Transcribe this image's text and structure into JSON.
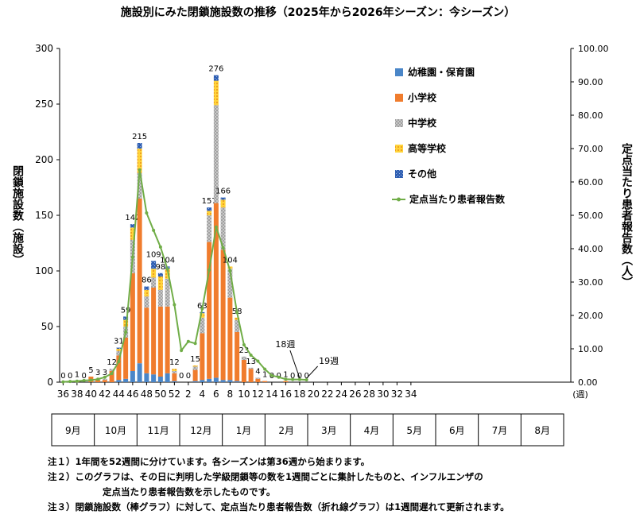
{
  "chart_data": {
    "type": "bar+line",
    "title": "施設別にみた閉鎖施設数の推移（2025年から2026年シーズン：今シーズン）",
    "ylabel_left": "閉鎖施設数（施設）",
    "ylabel_right": "定点当たり患者報告数（人）",
    "xlabel_unit": "(週)",
    "ylim_left": [
      0,
      300
    ],
    "ylim_right": [
      0,
      100
    ],
    "yticks_left": [
      "0",
      "50",
      "100",
      "150",
      "200",
      "250",
      "300"
    ],
    "yticks_right": [
      "0.00",
      "10.00",
      "20.00",
      "30.00",
      "40.00",
      "50.00",
      "60.00",
      "70.00",
      "80.00",
      "90.00",
      "100.00"
    ],
    "x_tick_labels": [
      "36",
      "38",
      "40",
      "42",
      "44",
      "46",
      "48",
      "50",
      "52",
      "2",
      "4",
      "6",
      "8",
      "10",
      "12",
      "14",
      "16",
      "18",
      "20",
      "22",
      "24",
      "26",
      "28",
      "30",
      "32",
      "34"
    ],
    "weeks": [
      36,
      37,
      38,
      39,
      40,
      41,
      42,
      43,
      44,
      45,
      46,
      47,
      48,
      49,
      50,
      51,
      52,
      1,
      2,
      3,
      4,
      5,
      6,
      7,
      8,
      9,
      10,
      11,
      12,
      13,
      14,
      15,
      16,
      17,
      18,
      19
    ],
    "totals": [
      0,
      0,
      1,
      0,
      5,
      3,
      3,
      12,
      31,
      59,
      142,
      215,
      86,
      109,
      98,
      104,
      12,
      0,
      0,
      15,
      63,
      157,
      276,
      166,
      104,
      58,
      23,
      13,
      4,
      1,
      0,
      0,
      1,
      0,
      0,
      0
    ],
    "series": [
      {
        "name": "幼稚園・保育園",
        "color": "#4a86c8",
        "values": [
          0,
          0,
          0,
          0,
          0,
          0,
          0,
          0,
          2,
          3,
          10,
          17,
          8,
          7,
          5,
          8,
          1,
          0,
          0,
          1,
          2,
          3,
          4,
          2,
          2,
          1,
          0,
          0,
          0,
          0,
          0,
          0,
          0,
          0,
          0,
          0
        ]
      },
      {
        "name": "小学校",
        "color": "#f07c2d",
        "values": [
          0,
          0,
          1,
          0,
          5,
          2,
          2,
          10,
          22,
          37,
          88,
          148,
          59,
          78,
          63,
          60,
          7,
          0,
          0,
          10,
          42,
          123,
          157,
          117,
          74,
          44,
          20,
          12,
          3,
          1,
          0,
          0,
          1,
          0,
          0,
          0
        ]
      },
      {
        "name": "中学校",
        "color": "#a8a8a8",
        "values": [
          0,
          0,
          0,
          0,
          0,
          1,
          1,
          2,
          4,
          10,
          30,
          23,
          10,
          9,
          15,
          25,
          2,
          0,
          0,
          3,
          14,
          24,
          88,
          38,
          26,
          11,
          3,
          1,
          1,
          0,
          0,
          0,
          0,
          0,
          0,
          0
        ]
      },
      {
        "name": "高等学校",
        "color": "#f5c518",
        "values": [
          0,
          0,
          0,
          0,
          0,
          0,
          0,
          0,
          2,
          6,
          11,
          22,
          6,
          8,
          12,
          9,
          2,
          0,
          0,
          1,
          4,
          4,
          22,
          7,
          2,
          2,
          0,
          0,
          0,
          0,
          0,
          0,
          0,
          0,
          0,
          0
        ]
      },
      {
        "name": "その他",
        "color": "#2f5fb3",
        "values": [
          0,
          0,
          0,
          0,
          0,
          0,
          0,
          0,
          1,
          3,
          3,
          5,
          3,
          7,
          3,
          2,
          0,
          0,
          0,
          0,
          1,
          3,
          5,
          2,
          0,
          0,
          0,
          0,
          0,
          0,
          0,
          0,
          0,
          0,
          0,
          0
        ]
      }
    ],
    "line": {
      "name": "定点当たり患者報告数",
      "color": "#70ad47",
      "values": [
        0.1,
        0.2,
        0.3,
        0.5,
        0.6,
        0.9,
        1.5,
        2.6,
        6.2,
        15.0,
        37.4,
        63.6,
        50.7,
        45.5,
        40.5,
        33.9,
        23.2,
        9.5,
        12.2,
        11.6,
        22.0,
        33.6,
        46.5,
        40.3,
        33.4,
        20.9,
        11.2,
        8.1,
        6.3,
        3.9,
        2.0,
        1.5,
        0.9,
        0.8,
        0.8,
        0.7
      ]
    },
    "annotations": [
      {
        "text": "18週",
        "week": 18
      },
      {
        "text": "19週",
        "week": 19
      }
    ],
    "months": [
      "9月",
      "10月",
      "11月",
      "12月",
      "1月",
      "2月",
      "3月",
      "4月",
      "5月",
      "6月",
      "7月",
      "8月"
    ]
  },
  "notes": [
    {
      "label": "注１）",
      "lines": [
        "1年間を52週間に分けています。各シーズンは第36週から始まります。"
      ]
    },
    {
      "label": "注２）",
      "lines": [
        "このグラフは、その日に判明した学級閉鎖等の数を1週間ごとに集計したものと、インフルエンザの",
        "定点当たり患者報告数を示したものです。"
      ]
    },
    {
      "label": "注３）",
      "lines": [
        "閉鎖施設数（棒グラフ）に対して、定点当たり患者報告数（折れ線グラフ）は1週間遅れて更新されます。"
      ]
    }
  ]
}
